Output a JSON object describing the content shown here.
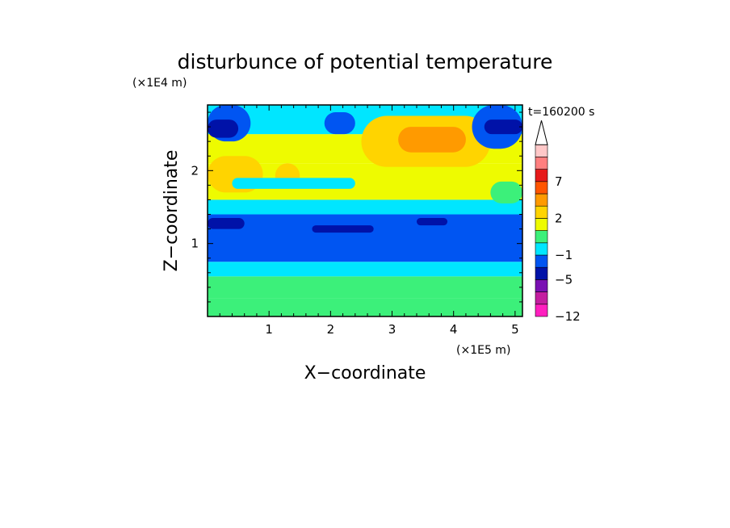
{
  "chart_data": {
    "type": "heatmap",
    "title": "disturbunce of potential temperature",
    "time_label": "t=160200 s",
    "xlabel": "X−coordinate",
    "ylabel": "Z−coordinate",
    "x_scale_label": "(×1E5 m)",
    "y_scale_label": "(×1E4 m)",
    "xlim": [
      0,
      5.12
    ],
    "ylim": [
      0,
      2.9
    ],
    "x_ticks": [
      {
        "value": 1,
        "label": "1"
      },
      {
        "value": 2,
        "label": "2"
      },
      {
        "value": 3,
        "label": "3"
      },
      {
        "value": 4,
        "label": "4"
      },
      {
        "value": 5,
        "label": "5"
      }
    ],
    "y_ticks": [
      {
        "value": 1,
        "label": "1"
      },
      {
        "value": 2,
        "label": "2"
      }
    ],
    "colorbar": {
      "levels": [
        -12,
        -9,
        -7,
        -5,
        -3,
        -1,
        0,
        1,
        2,
        3,
        5,
        7,
        9,
        11
      ],
      "colors": [
        "#ff1fbf",
        "#c41ea0",
        "#7a10b3",
        "#0012a8",
        "#0055f2",
        "#00e6ff",
        "#3cf07a",
        "#eefb00",
        "#ffd400",
        "#ff9a00",
        "#ff5500",
        "#e61a1a",
        "#ff7f7f",
        "#ffc8c8"
      ],
      "labels": [
        {
          "value": -12,
          "label": "−12"
        },
        {
          "value": -5,
          "label": "−5"
        },
        {
          "value": -1,
          "label": "−1"
        },
        {
          "value": 2,
          "label": "2"
        },
        {
          "value": 7,
          "label": "7"
        }
      ]
    },
    "regions": [
      {
        "x": [
          0,
          5.12
        ],
        "z": [
          0,
          0.25
        ],
        "value": 0.6
      },
      {
        "x": [
          0,
          5.12
        ],
        "z": [
          0.25,
          0.55
        ],
        "value": 0.4
      },
      {
        "x": [
          0,
          5.12
        ],
        "z": [
          0.55,
          0.75
        ],
        "value": -0.5
      },
      {
        "x": [
          0,
          5.12
        ],
        "z": [
          0.75,
          1.4
        ],
        "value": -1.5
      },
      {
        "x": [
          0,
          5.12
        ],
        "z": [
          1.4,
          1.6
        ],
        "value": -0.5
      },
      {
        "x": [
          0,
          5.12
        ],
        "z": [
          1.6,
          2.1
        ],
        "value": 1.5
      },
      {
        "x": [
          0,
          5.12
        ],
        "z": [
          2.1,
          2.5
        ],
        "value": 1.0
      },
      {
        "x": [
          0,
          5.12
        ],
        "z": [
          2.5,
          2.9
        ],
        "value": -0.5
      },
      {
        "x": [
          2.5,
          4.6
        ],
        "z": [
          2.05,
          2.75
        ],
        "value": 2.5
      },
      {
        "x": [
          3.1,
          4.2
        ],
        "z": [
          2.25,
          2.6
        ],
        "value": 4.0
      },
      {
        "x": [
          0,
          0.9
        ],
        "z": [
          1.7,
          2.2
        ],
        "value": 2.5
      },
      {
        "x": [
          1.1,
          1.5
        ],
        "z": [
          1.75,
          2.1
        ],
        "value": 2.5
      },
      {
        "x": [
          0,
          0.7
        ],
        "z": [
          2.4,
          2.9
        ],
        "value": -1.5
      },
      {
        "x": [
          0,
          0.5
        ],
        "z": [
          2.45,
          2.7
        ],
        "value": -4.0
      },
      {
        "x": [
          1.9,
          2.4
        ],
        "z": [
          2.5,
          2.8
        ],
        "value": -1.5
      },
      {
        "x": [
          4.3,
          5.12
        ],
        "z": [
          2.3,
          2.9
        ],
        "value": -1.5
      },
      {
        "x": [
          4.5,
          5.12
        ],
        "z": [
          2.5,
          2.7
        ],
        "value": -4.0
      },
      {
        "x": [
          0,
          0.6
        ],
        "z": [
          1.2,
          1.35
        ],
        "value": -4.0
      },
      {
        "x": [
          3.4,
          3.9
        ],
        "z": [
          1.25,
          1.35
        ],
        "value": -4.0
      },
      {
        "x": [
          1.7,
          2.7
        ],
        "z": [
          1.15,
          1.25
        ],
        "value": -4.0
      },
      {
        "x": [
          0.4,
          2.4
        ],
        "z": [
          1.75,
          1.9
        ],
        "value": -0.5
      },
      {
        "x": [
          4.6,
          5.12
        ],
        "z": [
          1.55,
          1.85
        ],
        "value": 0.4
      }
    ]
  }
}
